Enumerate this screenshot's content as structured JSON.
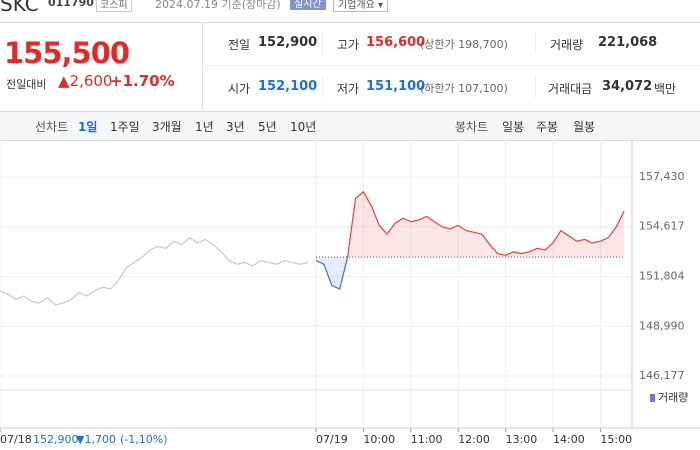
{
  "header": {
    "name": "SKC",
    "code": "011790",
    "market": "코스피",
    "date": "2024.07.19 기준(장마감)",
    "realtime": "실시간",
    "company": "기업개요 ▾"
  },
  "price": {
    "current": "155,500",
    "change_label": "전일대비",
    "change": "▲2,600",
    "rate": "+1.70%"
  },
  "quote": {
    "rows": [
      [
        {
          "label": "전일",
          "value": "152,900"
        },
        {
          "label": "고가",
          "value": "156,600",
          "note": "(상한가 198,700)"
        },
        {
          "label": "거래량",
          "value": "221,068"
        }
      ],
      [
        {
          "label": "시가",
          "value": "152,100"
        },
        {
          "label": "저가",
          "value": "151,100",
          "note": "(하한가 107,100)"
        },
        {
          "label": "거래대금",
          "value": "34,072",
          "unit": "백만"
        }
      ]
    ]
  },
  "tabs": {
    "line_label": "선차트",
    "line": [
      "1일",
      "1주일",
      "3개월",
      "1년",
      "3년",
      "5년",
      "10년"
    ],
    "active_index": 0,
    "candle_label": "봉차트",
    "candle": [
      "일봉",
      "주봉",
      "월봉"
    ]
  },
  "chart_data": {
    "type": "line",
    "xlim": [
      0,
      80
    ],
    "ylim": [
      145670,
      158390
    ],
    "xticks": [
      {
        "value": 0,
        "label": "07/18"
      },
      {
        "value": 40,
        "label": "07/19"
      },
      {
        "value": 46,
        "label": "10:00"
      },
      {
        "value": 52,
        "label": "11:00"
      },
      {
        "value": 58,
        "label": "12:00"
      },
      {
        "value": 64,
        "label": "13:00"
      },
      {
        "value": 70,
        "label": "14:00"
      },
      {
        "value": 76,
        "label": "15:00"
      }
    ],
    "yticks": [
      {
        "value": 157430,
        "label": "157,430"
      },
      {
        "value": 154617,
        "label": "154,617"
      },
      {
        "value": 151804,
        "label": "151,804"
      },
      {
        "value": 148990,
        "label": "148,990"
      },
      {
        "value": 146177,
        "label": "146,177"
      }
    ],
    "grid": true,
    "baseline": 152900,
    "series": [
      {
        "color": "#c8c8c8",
        "x": [
          0,
          1,
          2,
          3,
          4,
          5,
          6,
          7,
          8,
          9,
          10,
          11,
          12,
          13,
          14,
          15,
          16,
          17,
          18,
          19,
          20,
          21,
          22,
          23,
          24,
          25,
          26,
          27,
          28,
          29,
          30,
          31,
          32,
          33,
          34,
          35,
          36,
          37,
          38,
          39
        ],
        "values": [
          151000,
          150800,
          150500,
          150700,
          150400,
          150300,
          150600,
          150200,
          150300,
          150500,
          150900,
          150700,
          151000,
          151200,
          151100,
          151600,
          152300,
          152600,
          152900,
          153300,
          153500,
          153400,
          153800,
          153600,
          154000,
          153700,
          153900,
          153600,
          153200,
          152700,
          152500,
          152600,
          152400,
          152700,
          152600,
          152500,
          152700,
          152600,
          152500,
          152600
        ]
      },
      {
        "color": "#e8413f",
        "down_color": "#3a6fd8",
        "x": [
          40,
          41,
          42,
          43,
          44,
          45,
          46,
          47,
          48,
          49,
          50,
          51,
          52,
          53,
          54,
          55,
          56,
          57,
          58,
          59,
          60,
          61,
          62,
          63,
          64,
          65,
          66,
          67,
          68,
          69,
          70,
          71,
          72,
          73,
          74,
          75,
          76,
          77,
          78,
          79
        ],
        "values": [
          152700,
          152500,
          151300,
          151100,
          152900,
          156200,
          156600,
          155800,
          154700,
          154200,
          154800,
          155100,
          154900,
          155000,
          155200,
          154900,
          154600,
          154500,
          154700,
          154400,
          154300,
          154200,
          153600,
          153100,
          153000,
          153200,
          153100,
          153200,
          153400,
          153300,
          153700,
          154400,
          154100,
          153800,
          153900,
          153700,
          153800,
          154000,
          154600,
          155500
        ]
      }
    ],
    "volume_label": "거래량",
    "info": {
      "price": "152,900",
      "change": "▼1,700",
      "rate": "(-1,10%)"
    }
  }
}
